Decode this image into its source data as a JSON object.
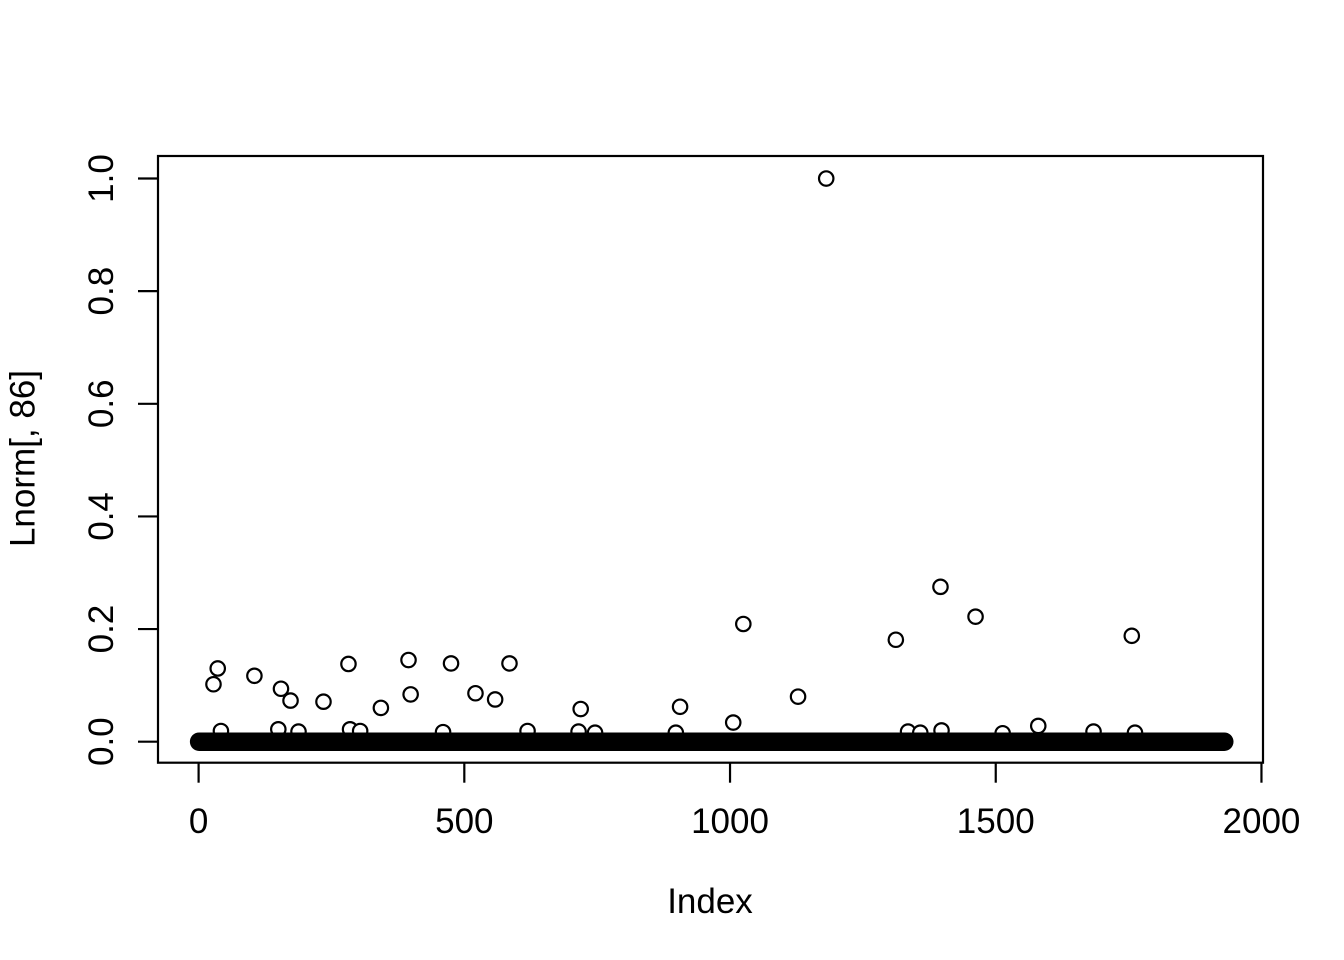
{
  "figure": {
    "background_color": "#ffffff",
    "axis_color": "#000000",
    "point_color": "#000000",
    "point_fill": "#ffffff"
  },
  "chart_data": {
    "type": "scatter",
    "title": "",
    "xlabel": "Index",
    "ylabel": "Lnorm[, 86]",
    "marker": "open-circle",
    "grid": "off",
    "legend": "none",
    "x_ticks": [
      0,
      500,
      1000,
      1500,
      2000
    ],
    "x_tick_labels": [
      "0",
      "500",
      "1000",
      "1500",
      "2000"
    ],
    "y_ticks": [
      0,
      0.2,
      0.4,
      0.6,
      0.8,
      1.0
    ],
    "y_tick_labels": [
      "0.0",
      "0.2",
      "0.4",
      "0.6",
      "0.8",
      "1.0"
    ],
    "xlim": [
      -76.4,
      2002.9
    ],
    "ylim": [
      -0.0373,
      1.04
    ],
    "baseline_band": {
      "description": "dense run of overlapping near-zero points forming a solid black band",
      "y": 0,
      "x_start": 1,
      "x_end": 1930
    },
    "outliers": [
      {
        "x": 28,
        "y": 0.102
      },
      {
        "x": 36,
        "y": 0.13
      },
      {
        "x": 42,
        "y": 0.019
      },
      {
        "x": 105,
        "y": 0.117
      },
      {
        "x": 150,
        "y": 0.022
      },
      {
        "x": 155,
        "y": 0.094
      },
      {
        "x": 173,
        "y": 0.073
      },
      {
        "x": 188,
        "y": 0.018
      },
      {
        "x": 235,
        "y": 0.071
      },
      {
        "x": 282,
        "y": 0.138
      },
      {
        "x": 285,
        "y": 0.022
      },
      {
        "x": 304,
        "y": 0.019
      },
      {
        "x": 343,
        "y": 0.06
      },
      {
        "x": 395,
        "y": 0.145
      },
      {
        "x": 399,
        "y": 0.084
      },
      {
        "x": 460,
        "y": 0.017
      },
      {
        "x": 475,
        "y": 0.139
      },
      {
        "x": 521,
        "y": 0.086
      },
      {
        "x": 558,
        "y": 0.075
      },
      {
        "x": 585,
        "y": 0.139
      },
      {
        "x": 619,
        "y": 0.019
      },
      {
        "x": 715,
        "y": 0.018
      },
      {
        "x": 719,
        "y": 0.058
      },
      {
        "x": 746,
        "y": 0.016
      },
      {
        "x": 898,
        "y": 0.016
      },
      {
        "x": 906,
        "y": 0.062
      },
      {
        "x": 1006,
        "y": 0.034
      },
      {
        "x": 1025,
        "y": 0.209
      },
      {
        "x": 1128,
        "y": 0.08
      },
      {
        "x": 1181,
        "y": 1.0
      },
      {
        "x": 1312,
        "y": 0.181
      },
      {
        "x": 1335,
        "y": 0.018
      },
      {
        "x": 1358,
        "y": 0.016
      },
      {
        "x": 1396,
        "y": 0.275
      },
      {
        "x": 1398,
        "y": 0.02
      },
      {
        "x": 1462,
        "y": 0.222
      },
      {
        "x": 1513,
        "y": 0.015
      },
      {
        "x": 1580,
        "y": 0.028
      },
      {
        "x": 1684,
        "y": 0.018
      },
      {
        "x": 1756,
        "y": 0.188
      },
      {
        "x": 1762,
        "y": 0.016
      }
    ]
  }
}
